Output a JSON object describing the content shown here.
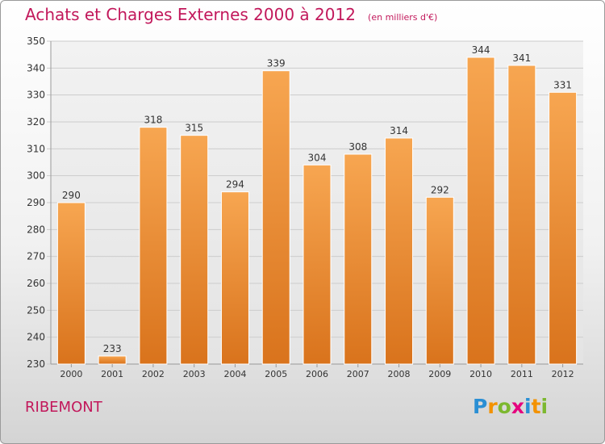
{
  "title": "Achats et Charges Externes 2000 à 2012",
  "subtitle": "(en milliers d'€)",
  "commune": "RIBEMONT",
  "brand": {
    "letters": [
      "P",
      "r",
      "o",
      "x",
      "i",
      "t",
      "i"
    ],
    "colors": [
      "#2a8fd4",
      "#f39200",
      "#7cb82f",
      "#e5007e",
      "#2a8fd4",
      "#f39200",
      "#7cb82f"
    ]
  },
  "colors": {
    "bar_top": "#f7a651",
    "bar_bottom": "#d9731c",
    "title": "#c2185b",
    "grid": "#cccccc"
  },
  "chart_data": {
    "type": "bar",
    "categories": [
      "2000",
      "2001",
      "2002",
      "2003",
      "2004",
      "2005",
      "2006",
      "2007",
      "2008",
      "2009",
      "2010",
      "2011",
      "2012"
    ],
    "values": [
      290,
      233,
      318,
      315,
      294,
      339,
      304,
      308,
      314,
      292,
      344,
      341,
      331
    ],
    "ylim": [
      230,
      350
    ],
    "yticks": [
      230,
      240,
      250,
      260,
      270,
      280,
      290,
      300,
      310,
      320,
      330,
      340,
      350
    ],
    "grid": true,
    "data_labels": true
  }
}
